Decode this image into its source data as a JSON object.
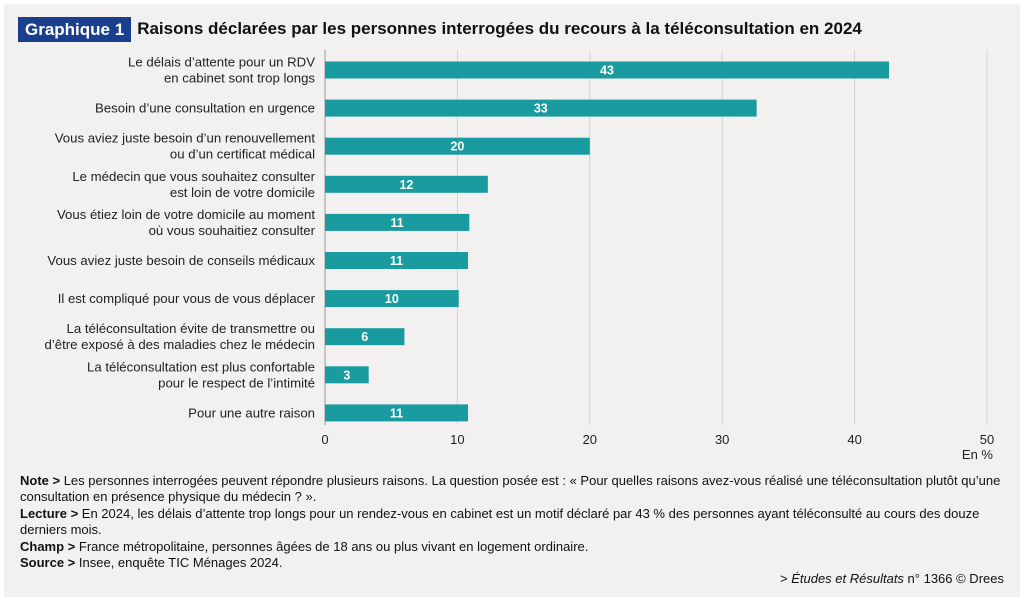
{
  "header": {
    "badge": "Graphique 1",
    "title": "Raisons déclarées par les personnes interrogées du recours à la téléconsultation en 2024"
  },
  "chart_data": {
    "type": "bar",
    "orientation": "horizontal",
    "title": "Raisons déclarées par les personnes interrogées du recours à la téléconsultation en 2024",
    "unit_label": "En %",
    "xlim": [
      0,
      50
    ],
    "xticks": [
      0,
      10,
      20,
      30,
      40,
      50
    ],
    "grid": true,
    "bar_color": "#1a9ba0",
    "categories": [
      [
        "Le délais d’attente pour un RDV",
        "en cabinet sont trop longs"
      ],
      [
        "Besoin d’une consultation en urgence"
      ],
      [
        "Vous aviez juste besoin d’un renouvellement",
        "ou d’un certificat médical"
      ],
      [
        "Le médecin que vous souhaitez consulter",
        "est loin de votre domicile"
      ],
      [
        "Vous étiez loin de votre domicile au moment",
        "où vous souhaitiez consulter"
      ],
      [
        "Vous aviez juste besoin de conseils médicaux"
      ],
      [
        "Il est compliqué pour vous de vous déplacer"
      ],
      [
        "La téléconsultation évite de transmettre ou",
        "d’être exposé à des maladies chez le médecin"
      ],
      [
        "La téléconsultation est plus confortable",
        "pour le respect de l’intimité"
      ],
      [
        "Pour une autre raison"
      ]
    ],
    "values": [
      42.6,
      32.6,
      20.0,
      12.3,
      10.9,
      10.8,
      10.1,
      6.0,
      3.3,
      10.8
    ],
    "value_labels": [
      "43",
      "33",
      "20",
      "12",
      "11",
      "11",
      "10",
      "6",
      "3",
      "11"
    ]
  },
  "notes": {
    "note_label": "Note >",
    "note_text": " Les personnes interrogées peuvent répondre plusieurs raisons. La question posée est : « Pour quelles raisons avez-vous réalisé une téléconsultation plutôt qu’une consultation en présence physique du médecin ? ».",
    "lecture_label": "Lecture >",
    "lecture_text": " En 2024, les délais d’attente trop longs pour un rendez-vous en cabinet est un motif déclaré par 43 % des personnes ayant téléconsulté au cours des douze derniers mois.",
    "champ_label": "Champ >",
    "champ_text": " France métropolitaine, personnes âgées de 18 ans ou plus vivant en logement ordinaire.",
    "source_label": "Source >",
    "source_text": " Insee, enquête TIC Ménages 2024."
  },
  "credit": {
    "prefix": "> ",
    "publication": "Études et Résultats",
    "suffix": " n° 1366 © Drees"
  }
}
